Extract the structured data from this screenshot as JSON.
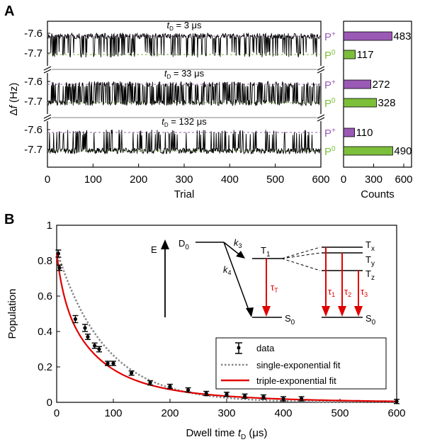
{
  "panel_a": {
    "letter": "A",
    "ylabel": "Δf (Hz)",
    "xlabel": "Trial",
    "counts_label": "Counts",
    "rows": [
      {
        "title": "t_D = 3 μs",
        "title_main": "t",
        "title_sub": "D",
        "title_rest": " = 3 μs",
        "p_plus": 483,
        "p_zero": 117
      },
      {
        "title": "t_D = 33 μs",
        "title_main": "t",
        "title_sub": "D",
        "title_rest": " = 33 μs",
        "p_plus": 272,
        "p_zero": 328
      },
      {
        "title": "t_D = 132 μs",
        "title_main": "t",
        "title_sub": "D",
        "title_rest": " = 132 μs",
        "p_plus": 110,
        "p_zero": 490
      }
    ],
    "y_ticks": [
      "-7.6",
      "-7.7"
    ],
    "x_ticks": [
      "0",
      "100",
      "200",
      "300",
      "400",
      "500",
      "600"
    ],
    "count_ticks": [
      "0",
      "300",
      "600"
    ],
    "state_plus": "P",
    "state_plus_sup": "+",
    "state_zero": "P",
    "state_zero_sup": "0",
    "colors": {
      "plus": "#9b59b6",
      "zero": "#7cbf3a",
      "trace": "#000000"
    }
  },
  "panel_b": {
    "letter": "B",
    "xlabel_main": "Dwell time ",
    "xlabel_t": "t",
    "xlabel_sub": "D",
    "xlabel_unit": " (μs)",
    "ylabel": "Population",
    "x_ticks": [
      "0",
      "100",
      "200",
      "300",
      "400",
      "500",
      "600"
    ],
    "y_ticks": [
      "0",
      "0.2",
      "0.4",
      "0.6",
      "0.8",
      "1"
    ],
    "legend": [
      "data",
      "single-exponential fit",
      "triple-exponential fit"
    ],
    "diagram": {
      "E": "E",
      "D0": "D",
      "D0_sub": "0",
      "T1": "T",
      "T1_sub": "1",
      "S0a": "S",
      "S0a_sub": "0",
      "S0b": "S",
      "S0b_sub": "0",
      "Tx": "T",
      "Tx_sub": "x",
      "Ty": "T",
      "Ty_sub": "y",
      "Tz": "T",
      "Tz_sub": "z",
      "k3": "k",
      "k3_sub": "3",
      "k4": "k",
      "k4_sub": "4",
      "tauT": "τ",
      "tauT_sub": "T",
      "tau1": "τ",
      "tau1_sub": "1",
      "tau2": "τ",
      "tau2_sub": "2",
      "tau3": "τ",
      "tau3_sub": "3"
    }
  },
  "chart_data": [
    {
      "type": "bar",
      "title": "t_D = 3 μs",
      "categories": [
        "P+",
        "P0"
      ],
      "values": [
        483,
        117
      ],
      "xlabel": "Counts",
      "xlim": [
        0,
        600
      ]
    },
    {
      "type": "bar",
      "title": "t_D = 33 μs",
      "categories": [
        "P+",
        "P0"
      ],
      "values": [
        272,
        328
      ],
      "xlabel": "Counts",
      "xlim": [
        0,
        600
      ]
    },
    {
      "type": "bar",
      "title": "t_D = 132 μs",
      "categories": [
        "P+",
        "P0"
      ],
      "values": [
        110,
        490
      ],
      "xlabel": "Counts",
      "xlim": [
        0,
        600
      ]
    },
    {
      "type": "scatter",
      "xlabel": "Dwell time t_D (μs)",
      "ylabel": "Population",
      "xlim": [
        0,
        600
      ],
      "ylim": [
        0,
        1
      ],
      "series": [
        {
          "name": "data",
          "x": [
            3,
            5,
            33,
            50,
            55,
            67,
            75,
            90,
            100,
            132,
            165,
            200,
            232,
            264,
            300,
            332,
            365,
            400,
            432,
            600
          ],
          "y": [
            0.84,
            0.76,
            0.47,
            0.42,
            0.37,
            0.32,
            0.3,
            0.22,
            0.22,
            0.165,
            0.11,
            0.09,
            0.07,
            0.05,
            0.045,
            0.035,
            0.03,
            0.02,
            0.02,
            0.005
          ],
          "err": [
            0.02,
            0.015,
            0.02,
            0.02,
            0.015,
            0.015,
            0.015,
            0.01,
            0.01,
            0.01,
            0.01,
            0.008,
            0.008,
            0.008,
            0.008,
            0.007,
            0.007,
            0.006,
            0.006,
            0.005
          ]
        },
        {
          "name": "single-exponential fit",
          "A": 0.86,
          "tau": 85
        },
        {
          "name": "triple-exponential fit",
          "A": [
            0.2,
            0.45,
            0.19
          ],
          "tau": [
            12,
            58,
            170
          ]
        }
      ]
    }
  ]
}
